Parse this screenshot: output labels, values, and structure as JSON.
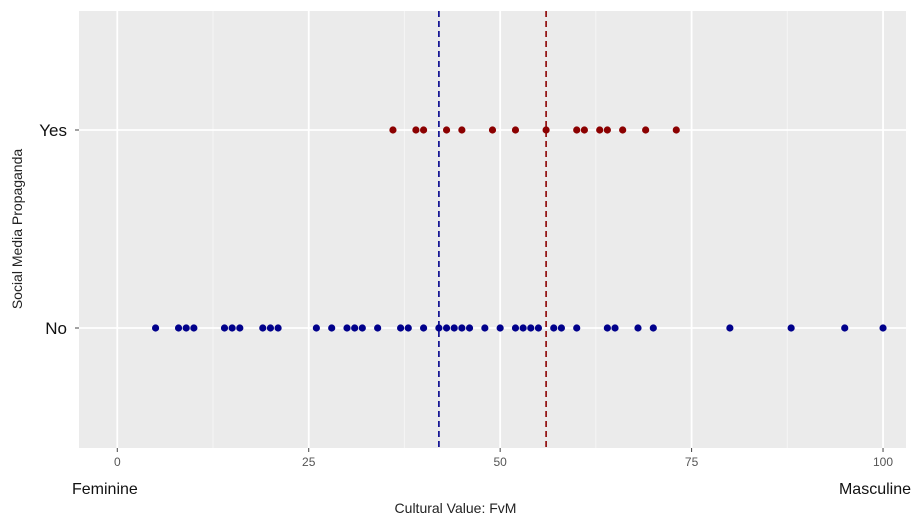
{
  "chart_data": {
    "type": "scatter",
    "xlabel": "Cultural Value: FvM",
    "ylabel": "Social Media Propaganda",
    "categories": [
      "No",
      "Yes"
    ],
    "xlim": [
      -5,
      103
    ],
    "x_ticks": [
      0,
      25,
      50,
      75,
      100
    ],
    "x_end_labels": {
      "left": "Feminine",
      "right": "Masculine"
    },
    "grid": true,
    "legend": "none",
    "series": [
      {
        "category": "Yes",
        "color": "#8b0000",
        "x": [
          36,
          39,
          40,
          43,
          45,
          49,
          52,
          56,
          60,
          61,
          63,
          64,
          66,
          69,
          73
        ]
      },
      {
        "category": "No",
        "color": "#00008b",
        "x": [
          5,
          8,
          9,
          10,
          14,
          15,
          16,
          19,
          20,
          21,
          26,
          28,
          30,
          31,
          32,
          34,
          37,
          38,
          40,
          42,
          43,
          44,
          45,
          46,
          48,
          50,
          52,
          53,
          54,
          55,
          57,
          58,
          60,
          64,
          65,
          68,
          70,
          80,
          88,
          95,
          100
        ]
      }
    ],
    "reference_lines": [
      {
        "x": 42,
        "color": "#00008b",
        "style": "dashed"
      },
      {
        "x": 56,
        "color": "#8b0000",
        "style": "dashed"
      }
    ]
  }
}
